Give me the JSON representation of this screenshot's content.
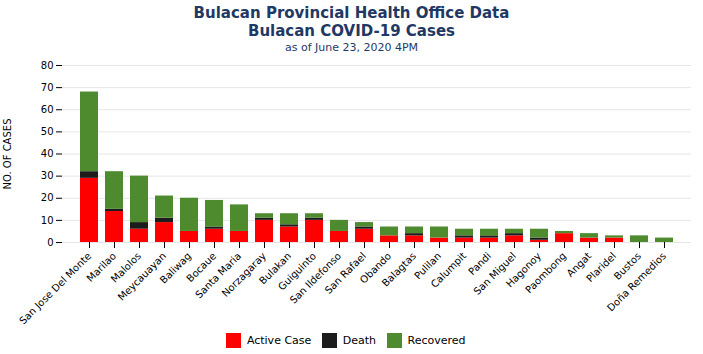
{
  "chart_data": {
    "type": "bar",
    "stacked": true,
    "title": [
      "Bulacan Provincial Health Office Data",
      "Bulacan COVID-19 Cases"
    ],
    "subtitle": "as of June 23, 2020 4PM",
    "ylabel": "NO. OF CASES",
    "categories": [
      "San Jose Del Monte",
      "Marilao",
      "Malolos",
      "Meycauayan",
      "Baliwag",
      "Bocaue",
      "Santa Maria",
      "Norzagaray",
      "Bulakan",
      "Guiguinto",
      "San Ildefonso",
      "San Rafael",
      "Obando",
      "Balagtas",
      "Pulilan",
      "Calumpit",
      "Pandi",
      "San Miguel",
      "Hagonoy",
      "Paombong",
      "Angat",
      "Plaridel",
      "Bustos",
      "Doña Remedios"
    ],
    "series": [
      {
        "name": "Active Case",
        "color": "#FF0000",
        "values": [
          29,
          14,
          6,
          9,
          5,
          6,
          5,
          10,
          7,
          10,
          5,
          6,
          3,
          3,
          2,
          2,
          2,
          3,
          1,
          4,
          2,
          2,
          0,
          0
        ]
      },
      {
        "name": "Death",
        "color": "#1C1C1C",
        "values": [
          3,
          1,
          3,
          2,
          0,
          1,
          0,
          1,
          1,
          1,
          0,
          1,
          0,
          1,
          0,
          1,
          1,
          1,
          1,
          0,
          0,
          0,
          0,
          0
        ]
      },
      {
        "name": "Recovered",
        "color": "#4E8A2E",
        "values": [
          36,
          17,
          21,
          10,
          15,
          12,
          12,
          2,
          5,
          2,
          5,
          2,
          4,
          3,
          5,
          3,
          3,
          2,
          4,
          1,
          2,
          1,
          3,
          2
        ]
      }
    ],
    "ylim": [
      0,
      80
    ],
    "yticks": [
      0,
      10,
      20,
      30,
      40,
      50,
      60,
      70,
      80
    ],
    "grid": true,
    "legend": "bottom"
  }
}
